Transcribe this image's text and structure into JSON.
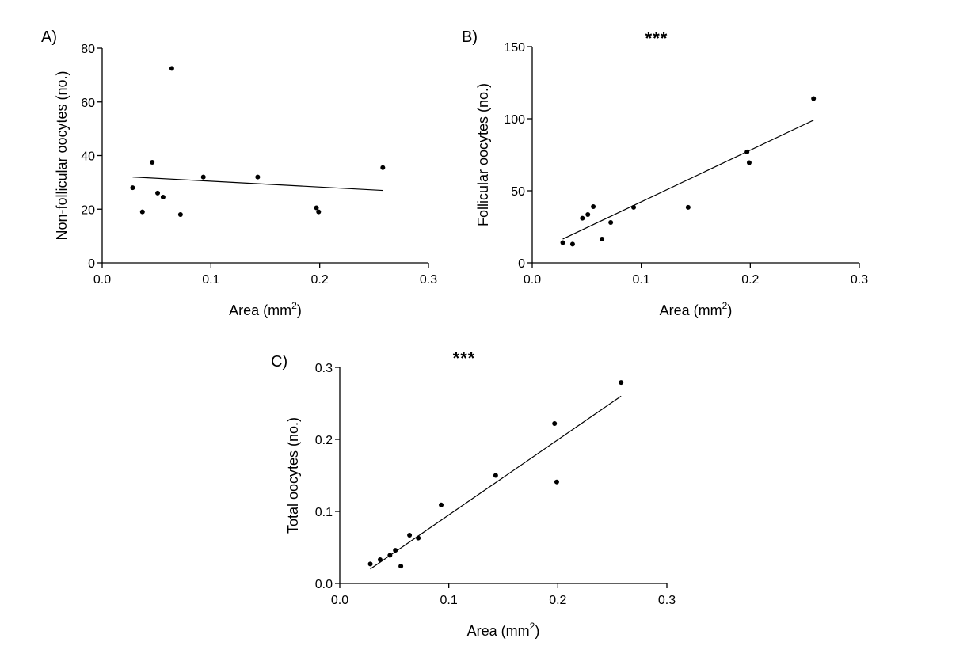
{
  "figure": {
    "background": "#ffffff",
    "ink": "#000000"
  },
  "chart_data": [
    {
      "type": "scatter",
      "panel_label": "A)",
      "significance": "",
      "title": "",
      "xlabel": "Area (mm",
      "xlabel_sup": "2",
      "xlabel_suffix": ")",
      "ylabel": "Non-follicular oocytes (no.)",
      "xlim": [
        0.0,
        0.3
      ],
      "ylim": [
        0,
        80
      ],
      "xticks": [
        0.0,
        0.1,
        0.2,
        0.3
      ],
      "xtick_labels": [
        "0.0",
        "0.1",
        "0.2",
        "0.3"
      ],
      "yticks": [
        0,
        20,
        40,
        60,
        80
      ],
      "ytick_labels": [
        "0",
        "20",
        "40",
        "60",
        "80"
      ],
      "grid": false,
      "legend": "none",
      "points": [
        {
          "x": 0.028,
          "y": 28
        },
        {
          "x": 0.037,
          "y": 19
        },
        {
          "x": 0.046,
          "y": 37.5
        },
        {
          "x": 0.051,
          "y": 26
        },
        {
          "x": 0.056,
          "y": 24.5
        },
        {
          "x": 0.064,
          "y": 72.5
        },
        {
          "x": 0.072,
          "y": 18
        },
        {
          "x": 0.093,
          "y": 32
        },
        {
          "x": 0.143,
          "y": 32
        },
        {
          "x": 0.197,
          "y": 20.5
        },
        {
          "x": 0.199,
          "y": 19
        },
        {
          "x": 0.258,
          "y": 35.5
        }
      ],
      "trendline": {
        "x": [
          0.028,
          0.258
        ],
        "y": [
          32,
          27
        ]
      }
    },
    {
      "type": "scatter",
      "panel_label": "B)",
      "significance": "***",
      "title": "",
      "xlabel": "Area (mm",
      "xlabel_sup": "2",
      "xlabel_suffix": ")",
      "ylabel": "Follicular oocytes (no.)",
      "xlim": [
        0.0,
        0.3
      ],
      "ylim": [
        0,
        150
      ],
      "xticks": [
        0.0,
        0.1,
        0.2,
        0.3
      ],
      "xtick_labels": [
        "0.0",
        "0.1",
        "0.2",
        "0.3"
      ],
      "yticks": [
        0,
        50,
        100,
        150
      ],
      "ytick_labels": [
        "0",
        "50",
        "100",
        "150"
      ],
      "grid": false,
      "legend": "none",
      "points": [
        {
          "x": 0.028,
          "y": 14
        },
        {
          "x": 0.037,
          "y": 13
        },
        {
          "x": 0.046,
          "y": 31
        },
        {
          "x": 0.051,
          "y": 33.5
        },
        {
          "x": 0.056,
          "y": 39
        },
        {
          "x": 0.064,
          "y": 16.5
        },
        {
          "x": 0.072,
          "y": 28
        },
        {
          "x": 0.093,
          "y": 38.5
        },
        {
          "x": 0.143,
          "y": 38.5
        },
        {
          "x": 0.197,
          "y": 77
        },
        {
          "x": 0.199,
          "y": 69.5
        },
        {
          "x": 0.258,
          "y": 114
        }
      ],
      "trendline": {
        "x": [
          0.028,
          0.258
        ],
        "y": [
          16.5,
          99
        ]
      }
    },
    {
      "type": "scatter",
      "panel_label": "C)",
      "significance": "***",
      "title": "",
      "xlabel": "Area (mm",
      "xlabel_sup": "2",
      "xlabel_suffix": ")",
      "ylabel": "Total oocytes (no.)",
      "xlim": [
        0.0,
        0.3
      ],
      "ylim": [
        0.0,
        0.3
      ],
      "xticks": [
        0.0,
        0.1,
        0.2,
        0.3
      ],
      "xtick_labels": [
        "0.0",
        "0.1",
        "0.2",
        "0.3"
      ],
      "yticks": [
        0.0,
        0.1,
        0.2,
        0.3
      ],
      "ytick_labels": [
        "0.0",
        "0.1",
        "0.2",
        "0.3"
      ],
      "grid": false,
      "legend": "none",
      "points": [
        {
          "x": 0.028,
          "y": 0.027
        },
        {
          "x": 0.037,
          "y": 0.033
        },
        {
          "x": 0.046,
          "y": 0.039
        },
        {
          "x": 0.051,
          "y": 0.046
        },
        {
          "x": 0.056,
          "y": 0.024
        },
        {
          "x": 0.064,
          "y": 0.067
        },
        {
          "x": 0.072,
          "y": 0.063
        },
        {
          "x": 0.093,
          "y": 0.109
        },
        {
          "x": 0.143,
          "y": 0.15
        },
        {
          "x": 0.197,
          "y": 0.222
        },
        {
          "x": 0.199,
          "y": 0.141
        },
        {
          "x": 0.258,
          "y": 0.279
        }
      ],
      "trendline": {
        "x": [
          0.028,
          0.258
        ],
        "y": [
          0.02,
          0.26
        ]
      }
    }
  ]
}
